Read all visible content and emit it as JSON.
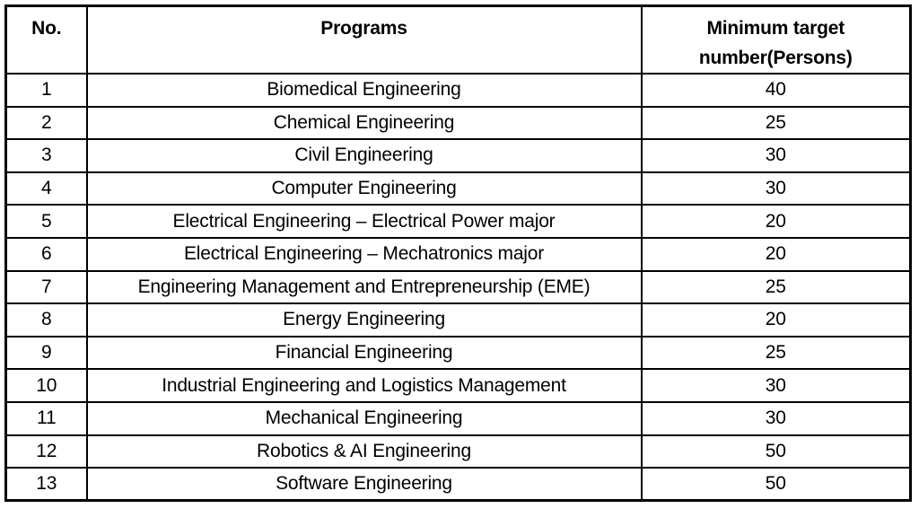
{
  "table": {
    "headers": {
      "no": "No.",
      "program": "Programs",
      "target": "Minimum target number(Persons)"
    },
    "rows": [
      {
        "no": "1",
        "program": "Biomedical Engineering",
        "target": "40"
      },
      {
        "no": "2",
        "program": "Chemical Engineering",
        "target": "25"
      },
      {
        "no": "3",
        "program": "Civil Engineering",
        "target": "30"
      },
      {
        "no": "4",
        "program": "Computer Engineering",
        "target": "30"
      },
      {
        "no": "5",
        "program": "Electrical Engineering – Electrical Power major",
        "target": "20"
      },
      {
        "no": "6",
        "program": "Electrical Engineering – Mechatronics major",
        "target": "20"
      },
      {
        "no": "7",
        "program": "Engineering Management and Entrepreneurship (EME)",
        "target": "25"
      },
      {
        "no": "8",
        "program": "Energy Engineering",
        "target": "20"
      },
      {
        "no": "9",
        "program": "Financial Engineering",
        "target": "25"
      },
      {
        "no": "10",
        "program": "Industrial Engineering and Logistics Management",
        "target": "30"
      },
      {
        "no": "11",
        "program": "Mechanical Engineering",
        "target": "30"
      },
      {
        "no": "12",
        "program": "Robotics & AI Engineering",
        "target": "50"
      },
      {
        "no": "13",
        "program": "Software Engineering",
        "target": "50"
      }
    ]
  }
}
